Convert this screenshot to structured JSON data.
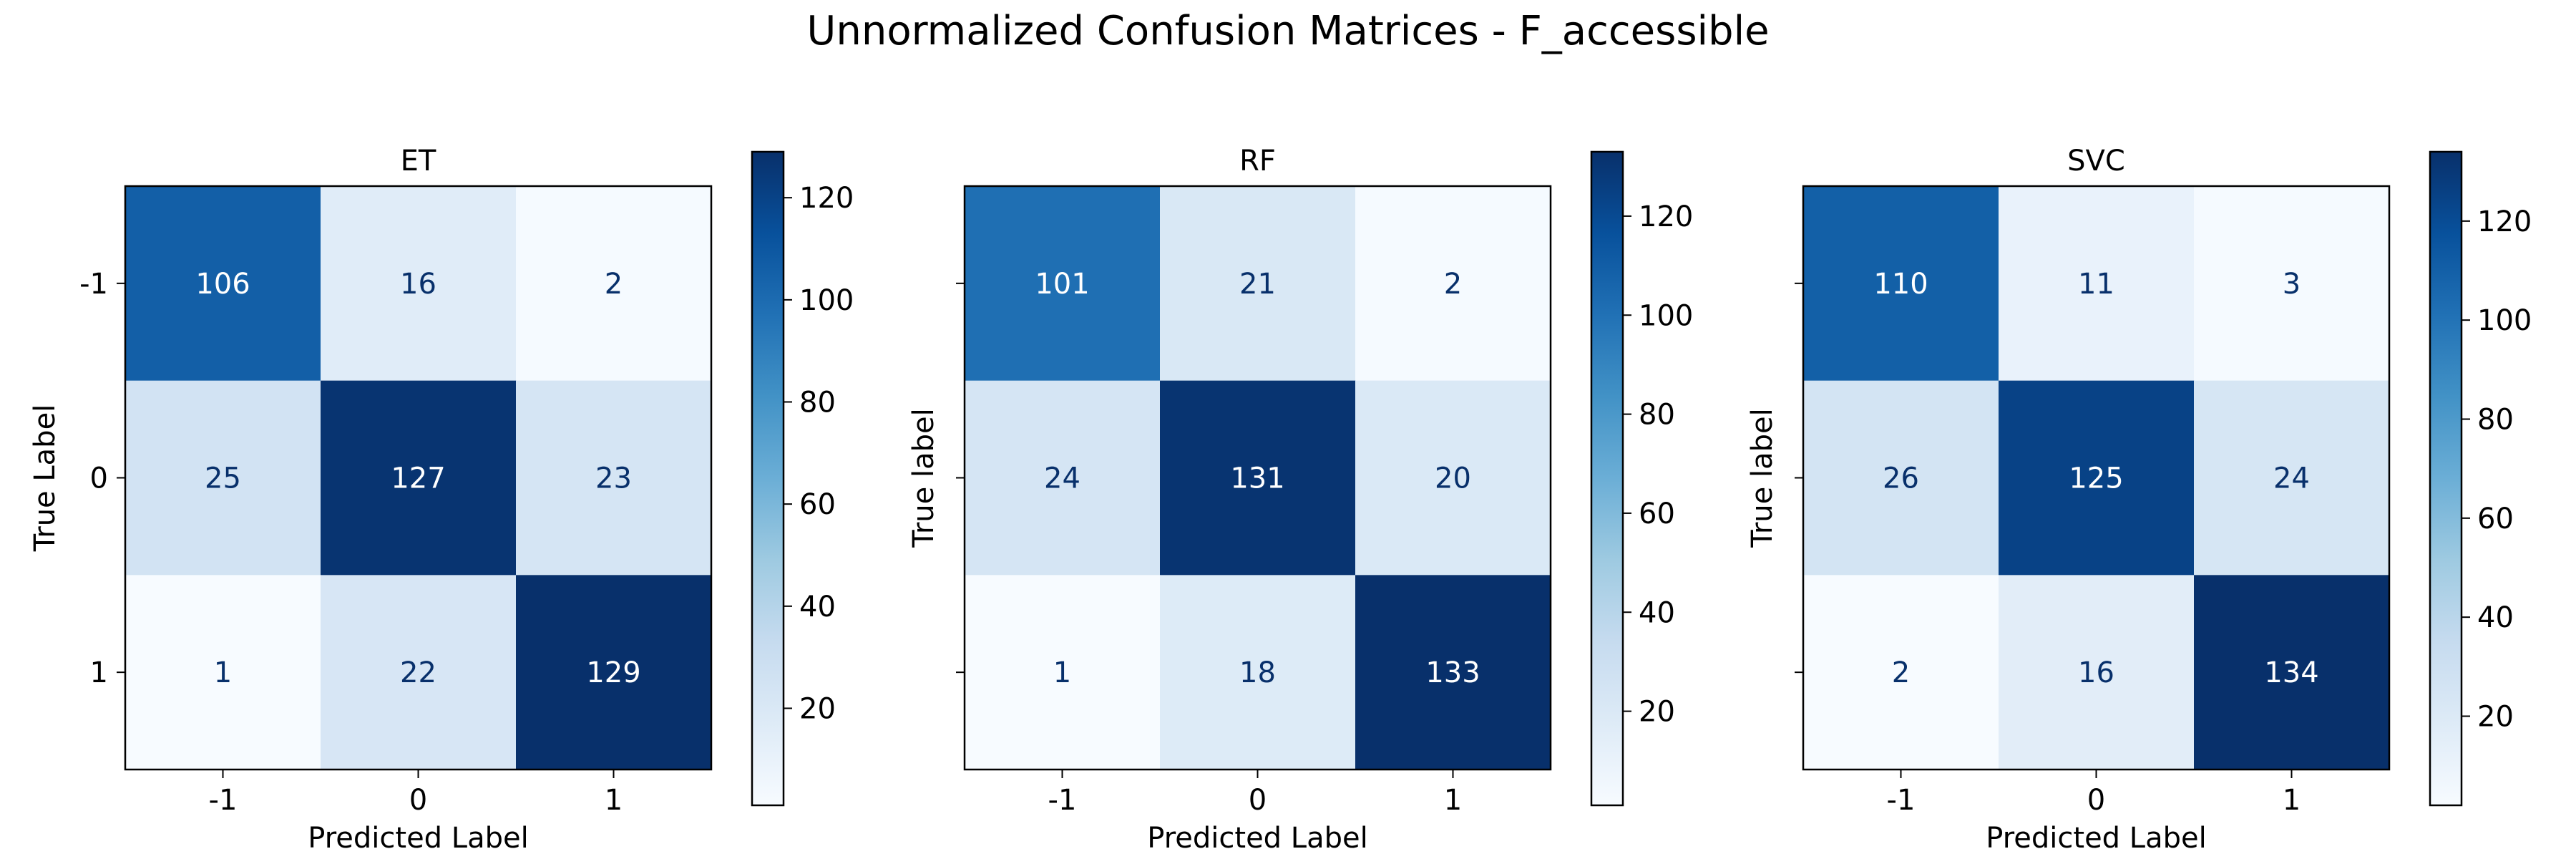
{
  "figure": {
    "title": "Unnormalized Confusion Matrices - F_accessible"
  },
  "chart_data": [
    {
      "type": "heatmap",
      "title": "ET",
      "xlabel": "Predicted Label",
      "ylabel": "True Label",
      "x_categories": [
        "-1",
        "0",
        "1"
      ],
      "y_categories": [
        "-1",
        "0",
        "1"
      ],
      "matrix": [
        [
          106,
          16,
          2
        ],
        [
          25,
          127,
          23
        ],
        [
          1,
          22,
          129
        ]
      ],
      "colorbar": {
        "colormap": "Blues",
        "min": 1,
        "max": 129,
        "ticks": [
          20,
          40,
          60,
          80,
          100,
          120
        ]
      }
    },
    {
      "type": "heatmap",
      "title": "RF",
      "xlabel": "Predicted Label",
      "ylabel": "True label",
      "x_categories": [
        "-1",
        "0",
        "1"
      ],
      "y_categories": [
        "-1",
        "0",
        "1"
      ],
      "matrix": [
        [
          101,
          21,
          2
        ],
        [
          24,
          131,
          20
        ],
        [
          1,
          18,
          133
        ]
      ],
      "colorbar": {
        "colormap": "Blues",
        "min": 1,
        "max": 133,
        "ticks": [
          20,
          40,
          60,
          80,
          100,
          120
        ]
      }
    },
    {
      "type": "heatmap",
      "title": "SVC",
      "xlabel": "Predicted Label",
      "ylabel": "True label",
      "x_categories": [
        "-1",
        "0",
        "1"
      ],
      "y_categories": [
        "-1",
        "0",
        "1"
      ],
      "matrix": [
        [
          110,
          11,
          3
        ],
        [
          26,
          125,
          24
        ],
        [
          2,
          16,
          134
        ]
      ],
      "colorbar": {
        "colormap": "Blues",
        "min": 2,
        "max": 134,
        "ticks": [
          20,
          40,
          60,
          80,
          100,
          120
        ]
      }
    }
  ]
}
